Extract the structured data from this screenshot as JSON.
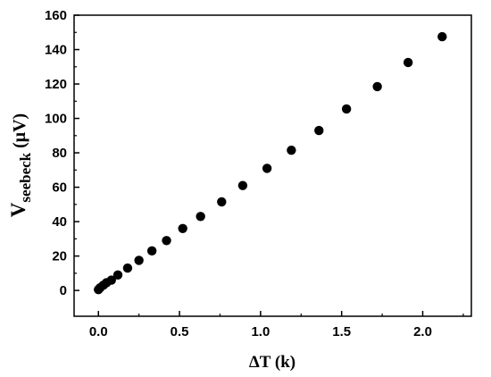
{
  "chart_data": {
    "type": "scatter",
    "xlabel": "ΔT (k)",
    "ylabel_main": "V",
    "ylabel_sub": "seebeck",
    "ylabel_unit": " (μV)",
    "xlim": [
      -0.15,
      2.3
    ],
    "ylim": [
      -15,
      160
    ],
    "x_ticks": [
      0.0,
      0.5,
      1.0,
      1.5,
      2.0
    ],
    "x_tick_labels": [
      "0.0",
      "0.5",
      "1.0",
      "1.5",
      "2.0"
    ],
    "y_ticks": [
      0,
      20,
      40,
      60,
      80,
      100,
      120,
      140,
      160
    ],
    "y_tick_labels": [
      "0",
      "20",
      "40",
      "60",
      "80",
      "100",
      "120",
      "140",
      "160"
    ],
    "grid": false,
    "marker_color": "#000000",
    "series": [
      {
        "x": [
          0.0,
          0.01,
          0.03,
          0.05,
          0.08,
          0.12,
          0.18,
          0.25,
          0.33,
          0.42,
          0.52,
          0.63,
          0.76,
          0.89,
          1.04,
          1.19,
          1.36,
          1.53,
          1.72,
          1.91,
          2.12
        ],
        "y": [
          0.5,
          1.5,
          3,
          4.5,
          6,
          9,
          13,
          17.5,
          23,
          29,
          36,
          43,
          51.5,
          61,
          71,
          81.5,
          93,
          105.5,
          118.5,
          132.5,
          147.5
        ]
      }
    ]
  }
}
